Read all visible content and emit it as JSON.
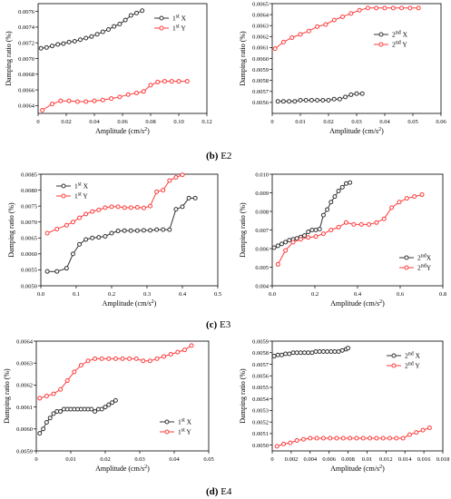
{
  "captions": [
    {
      "label": "(b)",
      "name": "E2"
    },
    {
      "label": "(c)",
      "name": "E3"
    },
    {
      "label": "(d)",
      "name": "E4"
    }
  ],
  "chart_data": [
    {
      "type": "line",
      "xlabel": "Amplitude (cm/s2)",
      "ylabel": "Damping ratio (%)",
      "xlim": [
        0,
        0.12
      ],
      "ylim": [
        0.0063,
        0.0077
      ],
      "xticks": [
        "0",
        "0.02",
        "0.04",
        "0.06",
        "0.08",
        "0.10",
        "0.12"
      ],
      "yticks": [
        "0.0064",
        "0.0066",
        "0.0068",
        "0.0070",
        "0.0072",
        "0.0074",
        "0.0076"
      ],
      "legend": "top-right",
      "series": [
        {
          "name": "1st X",
          "color": "#333333",
          "x": [
            0.002,
            0.006,
            0.01,
            0.014,
            0.018,
            0.022,
            0.026,
            0.03,
            0.034,
            0.038,
            0.042,
            0.046,
            0.05,
            0.054,
            0.058,
            0.062,
            0.066,
            0.07,
            0.074
          ],
          "y": [
            0.00713,
            0.00714,
            0.00716,
            0.00718,
            0.00719,
            0.00721,
            0.00722,
            0.00724,
            0.00726,
            0.00728,
            0.00731,
            0.00734,
            0.00737,
            0.00741,
            0.00744,
            0.00749,
            0.00755,
            0.00758,
            0.00761
          ]
        },
        {
          "name": "1st Y",
          "color": "#ff3b3b",
          "x": [
            0.003,
            0.01,
            0.016,
            0.022,
            0.028,
            0.034,
            0.04,
            0.046,
            0.052,
            0.058,
            0.064,
            0.07,
            0.075,
            0.08,
            0.085,
            0.09,
            0.095,
            0.1,
            0.106
          ],
          "y": [
            0.00634,
            0.00642,
            0.00646,
            0.00646,
            0.00645,
            0.00645,
            0.00646,
            0.00647,
            0.00649,
            0.00651,
            0.00654,
            0.00656,
            0.00658,
            0.00666,
            0.0067,
            0.00671,
            0.00671,
            0.00671,
            0.00671
          ]
        }
      ]
    },
    {
      "type": "line",
      "xlabel": "Amplitude (cm/s2)",
      "ylabel": "Damping ratio (%)",
      "xlim": [
        0,
        0.06
      ],
      "ylim": [
        0.0055,
        0.0065
      ],
      "xticks": [
        "0",
        "0.01",
        "0.02",
        "0.03",
        "0.04",
        "0.05",
        "0.06"
      ],
      "yticks": [
        "0.0056",
        "0.0057",
        "0.0058",
        "0.0059",
        "0.0060",
        "0.0061",
        "0.0062",
        "0.0063",
        "0.0064",
        "0.0065"
      ],
      "legend": "middle-right",
      "series": [
        {
          "name": "2nd X",
          "color": "#333333",
          "x": [
            0.002,
            0.004,
            0.006,
            0.008,
            0.01,
            0.012,
            0.014,
            0.016,
            0.018,
            0.02,
            0.022,
            0.024,
            0.026,
            0.028,
            0.03,
            0.032
          ],
          "y": [
            0.00561,
            0.00561,
            0.00561,
            0.00561,
            0.00562,
            0.00562,
            0.00562,
            0.00562,
            0.00562,
            0.00562,
            0.00563,
            0.00563,
            0.00565,
            0.00567,
            0.00568,
            0.00568
          ]
        },
        {
          "name": "2nd Y",
          "color": "#ff3b3b",
          "x": [
            0.001,
            0.004,
            0.007,
            0.01,
            0.013,
            0.016,
            0.019,
            0.022,
            0.025,
            0.028,
            0.031,
            0.034,
            0.037,
            0.04,
            0.043,
            0.046,
            0.049,
            0.052
          ],
          "y": [
            0.00609,
            0.00615,
            0.00619,
            0.00622,
            0.00625,
            0.00629,
            0.00631,
            0.00635,
            0.00638,
            0.00641,
            0.00644,
            0.00646,
            0.00646,
            0.00646,
            0.00646,
            0.00646,
            0.00646,
            0.00646
          ]
        }
      ]
    },
    {
      "type": "line",
      "xlabel": "Amplitude (cm/s2)",
      "ylabel": "Damping ratio (%)",
      "xlim": [
        0,
        0.55
      ],
      "ylim": [
        0.005,
        0.0085
      ],
      "xticks": [
        "0.0",
        "0.1",
        "0.2",
        "0.3",
        "0.4",
        "0.5"
      ],
      "yticks": [
        "0.0050",
        "0.0055",
        "0.0060",
        "0.0065",
        "0.0070",
        "0.0075",
        "0.0080",
        "0.0085"
      ],
      "legend": "top-left",
      "series": [
        {
          "name": "1st X",
          "color": "#333333",
          "x": [
            0.02,
            0.05,
            0.08,
            0.1,
            0.12,
            0.14,
            0.16,
            0.18,
            0.2,
            0.22,
            0.24,
            0.26,
            0.28,
            0.3,
            0.32,
            0.34,
            0.36,
            0.38,
            0.4,
            0.42,
            0.44,
            0.46,
            0.48
          ],
          "y": [
            0.00545,
            0.00545,
            0.00555,
            0.006,
            0.0063,
            0.00645,
            0.0065,
            0.00652,
            0.00655,
            0.00665,
            0.00672,
            0.00673,
            0.00673,
            0.00673,
            0.00674,
            0.00674,
            0.00676,
            0.00676,
            0.00676,
            0.0074,
            0.00748,
            0.00775,
            0.00775
          ]
        },
        {
          "name": "1st Y",
          "color": "#ff3b3b",
          "x": [
            0.02,
            0.05,
            0.08,
            0.1,
            0.12,
            0.14,
            0.16,
            0.18,
            0.2,
            0.22,
            0.24,
            0.26,
            0.28,
            0.3,
            0.32,
            0.34,
            0.36,
            0.38,
            0.4,
            0.42,
            0.44
          ],
          "y": [
            0.00665,
            0.00678,
            0.0069,
            0.007,
            0.00713,
            0.00725,
            0.00733,
            0.00738,
            0.00745,
            0.00748,
            0.00748,
            0.00745,
            0.00745,
            0.00746,
            0.00744,
            0.0075,
            0.00795,
            0.008,
            0.0083,
            0.0084,
            0.00848
          ]
        }
      ]
    },
    {
      "type": "line",
      "xlabel": "Amplitude (cm/s2)",
      "ylabel": "Damping ratio (%)",
      "xlim": [
        0,
        0.9
      ],
      "ylim": [
        0.004,
        0.01
      ],
      "xticks": [
        "0.0",
        "0.2",
        "0.4",
        "0.6",
        "0.8"
      ],
      "yticks": [
        "0.004",
        "0.005",
        "0.006",
        "0.007",
        "0.008",
        "0.009",
        "0.010"
      ],
      "legend": "bottom-right",
      "series": [
        {
          "name": "2ndX",
          "color": "#333333",
          "x": [
            0.01,
            0.03,
            0.05,
            0.07,
            0.09,
            0.11,
            0.13,
            0.15,
            0.17,
            0.19,
            0.21,
            0.23,
            0.25,
            0.27,
            0.29,
            0.31,
            0.33,
            0.35,
            0.37,
            0.39,
            0.41
          ],
          "y": [
            0.00605,
            0.00615,
            0.00625,
            0.00635,
            0.00645,
            0.0065,
            0.00655,
            0.00662,
            0.0067,
            0.0069,
            0.007,
            0.007,
            0.00705,
            0.0078,
            0.0081,
            0.0085,
            0.0088,
            0.0091,
            0.0093,
            0.0095,
            0.00955
          ]
        },
        {
          "name": "2ndY",
          "color": "#ff3b3b",
          "x": [
            0.03,
            0.07,
            0.11,
            0.15,
            0.19,
            0.23,
            0.27,
            0.31,
            0.35,
            0.39,
            0.43,
            0.47,
            0.51,
            0.55,
            0.59,
            0.63,
            0.67,
            0.71,
            0.75,
            0.79
          ],
          "y": [
            0.00515,
            0.0059,
            0.00635,
            0.0065,
            0.0066,
            0.00665,
            0.0068,
            0.007,
            0.00715,
            0.0074,
            0.0073,
            0.0073,
            0.0073,
            0.0074,
            0.0076,
            0.0082,
            0.0085,
            0.0087,
            0.0088,
            0.0089
          ]
        }
      ]
    },
    {
      "type": "line",
      "xlabel": "Amplitude (cm/s2)",
      "ylabel": "Damping ratio (%)",
      "xlim": [
        0,
        0.05
      ],
      "ylim": [
        0.0059,
        0.0064
      ],
      "xticks": [
        "0",
        "0.01",
        "0.02",
        "0.03",
        "0.04",
        "0.05"
      ],
      "yticks": [
        "0.0059",
        "0.0060",
        "0.0061",
        "0.0062",
        "0.0063",
        "0.0064"
      ],
      "legend": "bottom-right",
      "series": [
        {
          "name": "1st X",
          "color": "#333333",
          "x": [
            0.001,
            0.002,
            0.003,
            0.004,
            0.005,
            0.006,
            0.007,
            0.008,
            0.009,
            0.01,
            0.011,
            0.012,
            0.013,
            0.014,
            0.015,
            0.016,
            0.017,
            0.018,
            0.019,
            0.02,
            0.021,
            0.022,
            0.023
          ],
          "y": [
            0.00598,
            0.006,
            0.00603,
            0.00605,
            0.00607,
            0.00608,
            0.00608,
            0.00609,
            0.00609,
            0.00609,
            0.00609,
            0.00609,
            0.00609,
            0.00609,
            0.00609,
            0.00609,
            0.00608,
            0.00609,
            0.00609,
            0.0061,
            0.00611,
            0.00612,
            0.00613
          ]
        },
        {
          "name": "1st Y",
          "color": "#ff3b3b",
          "x": [
            0.001,
            0.003,
            0.005,
            0.007,
            0.009,
            0.011,
            0.013,
            0.015,
            0.017,
            0.019,
            0.021,
            0.023,
            0.025,
            0.027,
            0.029,
            0.031,
            0.033,
            0.035,
            0.037,
            0.039,
            0.041,
            0.043,
            0.045
          ],
          "y": [
            0.00614,
            0.00615,
            0.00616,
            0.00618,
            0.00622,
            0.00626,
            0.00629,
            0.00631,
            0.00632,
            0.00632,
            0.00632,
            0.00632,
            0.00632,
            0.00632,
            0.00632,
            0.00631,
            0.00631,
            0.00632,
            0.00633,
            0.00634,
            0.00635,
            0.00636,
            0.00638
          ]
        }
      ]
    },
    {
      "type": "line",
      "xlabel": "Amplitude (cm/s2)",
      "ylabel": "Damping ratio (%)",
      "xlim": [
        0,
        0.018
      ],
      "ylim": [
        0.00495,
        0.0059
      ],
      "xticks": [
        "0",
        "0.002",
        "0.004",
        "0.006",
        "0.008",
        "0.01",
        "0.012",
        "0.014",
        "0.016",
        "0.018"
      ],
      "yticks": [
        "0.0050",
        "0.0051",
        "0.0052",
        "0.0053",
        "0.0054",
        "0.0055",
        "0.0056",
        "0.0057",
        "0.0058",
        "0.0059"
      ],
      "legend": "top-right",
      "series": [
        {
          "name": "2nd X",
          "color": "#333333",
          "x": [
            0.0002,
            0.0006,
            0.001,
            0.0014,
            0.0018,
            0.0022,
            0.0026,
            0.003,
            0.0034,
            0.0038,
            0.0042,
            0.0046,
            0.005,
            0.0054,
            0.0058,
            0.0062,
            0.0066,
            0.007,
            0.0074,
            0.0078,
            0.008
          ],
          "y": [
            0.00577,
            0.00578,
            0.00578,
            0.00579,
            0.00579,
            0.0058,
            0.0058,
            0.0058,
            0.0058,
            0.0058,
            0.0058,
            0.00581,
            0.00581,
            0.00581,
            0.00581,
            0.00581,
            0.00581,
            0.00581,
            0.00582,
            0.00583,
            0.00584
          ]
        },
        {
          "name": "2nd Y",
          "color": "#ff3b3b",
          "x": [
            0.0005,
            0.0012,
            0.0019,
            0.0026,
            0.0033,
            0.004,
            0.0047,
            0.0054,
            0.0061,
            0.0068,
            0.0075,
            0.0082,
            0.0089,
            0.0096,
            0.0103,
            0.011,
            0.0117,
            0.0124,
            0.0131,
            0.0138,
            0.0145,
            0.0152,
            0.0159,
            0.0166
          ],
          "y": [
            0.00499,
            0.00501,
            0.00502,
            0.00504,
            0.00505,
            0.00506,
            0.00506,
            0.00506,
            0.00506,
            0.00506,
            0.00506,
            0.00506,
            0.00506,
            0.00506,
            0.00506,
            0.00506,
            0.00506,
            0.00506,
            0.00506,
            0.00506,
            0.00509,
            0.00511,
            0.00513,
            0.00515
          ]
        }
      ]
    }
  ]
}
